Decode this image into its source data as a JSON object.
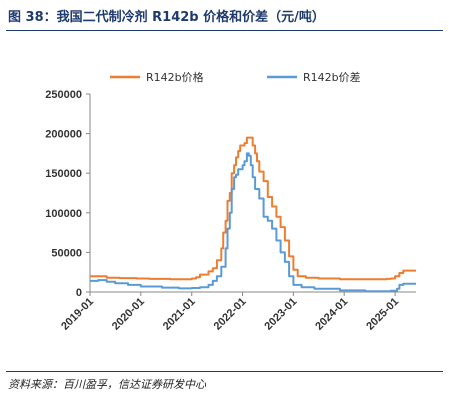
{
  "header": {
    "title": "图 38：我国二代制冷剂 R142b 价格和价差（元/吨）"
  },
  "footer": {
    "source": "资料来源：百川盈孚，信达证券研发中心"
  },
  "chart_data": {
    "type": "line",
    "title": "我国二代制冷剂 R142b 价格和价差（元/吨）",
    "ylim": [
      0,
      250000
    ],
    "yticks": [
      0,
      50000,
      100000,
      150000,
      200000,
      250000
    ],
    "ytick_labels": [
      "0",
      "50000",
      "100000",
      "150000",
      "200000",
      "250000"
    ],
    "xlim": [
      "2019-01-01",
      "2025-05-31"
    ],
    "xtick_labels": [
      "2019-01",
      "2020-01",
      "2021-01",
      "2022-01",
      "2023-01",
      "2024-01",
      "2025-01"
    ],
    "grid": false,
    "legend_position": "top",
    "colors": {
      "price": "#ed7d31",
      "spread": "#5b9bd5"
    },
    "series": [
      {
        "name": "R142b价格",
        "color": "#ed7d31",
        "points": [
          [
            "2019-01-01",
            20000
          ],
          [
            "2019-04-01",
            20000
          ],
          [
            "2019-05-01",
            18000
          ],
          [
            "2019-08-01",
            17500
          ],
          [
            "2019-12-01",
            17000
          ],
          [
            "2020-03-01",
            16500
          ],
          [
            "2020-08-01",
            16000
          ],
          [
            "2020-12-01",
            16000
          ],
          [
            "2021-01-01",
            17000
          ],
          [
            "2021-02-01",
            18500
          ],
          [
            "2021-03-01",
            22000
          ],
          [
            "2021-04-01",
            22000
          ],
          [
            "2021-05-01",
            26000
          ],
          [
            "2021-06-01",
            30000
          ],
          [
            "2021-07-01",
            40000
          ],
          [
            "2021-08-01",
            55000
          ],
          [
            "2021-08-15",
            75000
          ],
          [
            "2021-09-01",
            90000
          ],
          [
            "2021-09-15",
            115000
          ],
          [
            "2021-10-01",
            125000
          ],
          [
            "2021-10-15",
            150000
          ],
          [
            "2021-11-01",
            160000
          ],
          [
            "2021-11-15",
            170000
          ],
          [
            "2021-12-01",
            178000
          ],
          [
            "2021-12-15",
            185000
          ],
          [
            "2022-01-15",
            188000
          ],
          [
            "2022-02-01",
            195000
          ],
          [
            "2022-03-01",
            195000
          ],
          [
            "2022-03-15",
            185000
          ],
          [
            "2022-04-01",
            175000
          ],
          [
            "2022-04-15",
            165000
          ],
          [
            "2022-05-01",
            152000
          ],
          [
            "2022-06-01",
            140000
          ],
          [
            "2022-07-01",
            120000
          ],
          [
            "2022-08-01",
            108000
          ],
          [
            "2022-09-01",
            95000
          ],
          [
            "2022-10-01",
            82000
          ],
          [
            "2022-11-01",
            65000
          ],
          [
            "2022-12-01",
            45000
          ],
          [
            "2023-01-01",
            28000
          ],
          [
            "2023-02-01",
            20000
          ],
          [
            "2023-04-01",
            18000
          ],
          [
            "2023-07-01",
            17000
          ],
          [
            "2023-12-01",
            16000
          ],
          [
            "2024-06-01",
            16000
          ],
          [
            "2024-11-01",
            16500
          ],
          [
            "2024-12-01",
            17000
          ],
          [
            "2025-01-01",
            20000
          ],
          [
            "2025-02-01",
            24000
          ],
          [
            "2025-03-01",
            27000
          ],
          [
            "2025-05-31",
            27000
          ]
        ]
      },
      {
        "name": "R142b价差",
        "color": "#5b9bd5",
        "points": [
          [
            "2019-01-01",
            14000
          ],
          [
            "2019-03-01",
            15000
          ],
          [
            "2019-05-01",
            13000
          ],
          [
            "2019-07-01",
            11000
          ],
          [
            "2019-10-01",
            9000
          ],
          [
            "2020-01-01",
            7000
          ],
          [
            "2020-06-01",
            5500
          ],
          [
            "2020-10-01",
            4500
          ],
          [
            "2021-01-01",
            5000
          ],
          [
            "2021-03-01",
            6000
          ],
          [
            "2021-05-01",
            9000
          ],
          [
            "2021-06-01",
            14000
          ],
          [
            "2021-07-01",
            20000
          ],
          [
            "2021-08-01",
            32000
          ],
          [
            "2021-09-01",
            55000
          ],
          [
            "2021-09-15",
            80000
          ],
          [
            "2021-10-01",
            100000
          ],
          [
            "2021-10-15",
            130000
          ],
          [
            "2021-11-01",
            145000
          ],
          [
            "2021-11-15",
            148000
          ],
          [
            "2021-12-01",
            155000
          ],
          [
            "2022-01-01",
            160000
          ],
          [
            "2022-01-15",
            165000
          ],
          [
            "2022-02-01",
            175000
          ],
          [
            "2022-02-15",
            172000
          ],
          [
            "2022-03-01",
            160000
          ],
          [
            "2022-03-15",
            145000
          ],
          [
            "2022-04-01",
            130000
          ],
          [
            "2022-05-01",
            118000
          ],
          [
            "2022-06-01",
            95000
          ],
          [
            "2022-07-01",
            90000
          ],
          [
            "2022-08-01",
            80000
          ],
          [
            "2022-09-01",
            65000
          ],
          [
            "2022-10-01",
            50000
          ],
          [
            "2022-11-01",
            38000
          ],
          [
            "2022-12-01",
            20000
          ],
          [
            "2023-01-01",
            9000
          ],
          [
            "2023-03-01",
            6000
          ],
          [
            "2023-06-01",
            4000
          ],
          [
            "2023-12-01",
            2000
          ],
          [
            "2024-06-01",
            1000
          ],
          [
            "2024-12-01",
            1500
          ],
          [
            "2025-01-15",
            4000
          ],
          [
            "2025-02-01",
            9000
          ],
          [
            "2025-03-01",
            10500
          ],
          [
            "2025-05-31",
            10500
          ]
        ]
      }
    ]
  }
}
